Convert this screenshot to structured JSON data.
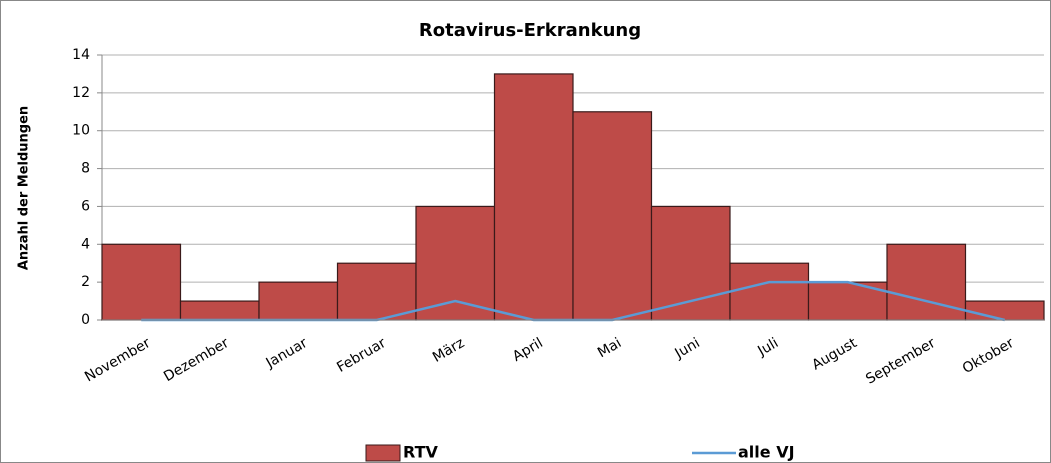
{
  "chart_data": {
    "type": "bar",
    "title": "Rotavirus-Erkrankung",
    "y_label": "Anzahl der Meldungen",
    "categories": [
      "November",
      "Dezember",
      "Januar",
      "Februar",
      "März",
      "April",
      "Mai",
      "Juni",
      "Juli",
      "August",
      "September",
      "Oktober"
    ],
    "series": [
      {
        "name": "RTV",
        "type": "bar",
        "color": "#be4b48",
        "values": [
          4,
          1,
          2,
          3,
          6,
          13,
          11,
          6,
          3,
          2,
          4,
          1
        ]
      },
      {
        "name": "alle VJ",
        "type": "line",
        "color": "#5b9bd5",
        "values": [
          0,
          0,
          0,
          0,
          1,
          0,
          0,
          1,
          2,
          2,
          1,
          0
        ]
      }
    ],
    "ylim": [
      0,
      14
    ],
    "yticks": [
      0,
      2,
      4,
      6,
      8,
      10,
      12,
      14
    ],
    "grid": true,
    "legend": "bottom"
  }
}
